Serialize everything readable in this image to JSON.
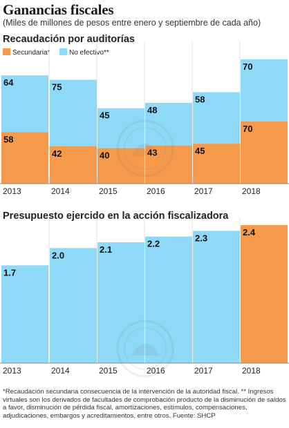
{
  "title": "Ganancias fiscales",
  "subtitle": "(Miles de millones de pesos entre enero y septiembre de cada año)",
  "colors": {
    "secundaria": "#F59A4A",
    "no_efectivo": "#8ED8F8",
    "grid": "#DDDDDD",
    "axis": "#888888"
  },
  "section1": {
    "title": "Recaudación por auditorías",
    "legend": [
      {
        "label": "Secundaria*",
        "color": "#F59A4A"
      },
      {
        "label": "No efectivo**",
        "color": "#8ED8F8"
      }
    ]
  },
  "section2": {
    "title": "Presupuesto ejercido en la acción fiscalizadora"
  },
  "chart_data": [
    {
      "type": "bar",
      "stacked": true,
      "title": "Recaudación por auditorías",
      "categories": [
        "2013",
        "2014",
        "2015",
        "2016",
        "2017",
        "2018"
      ],
      "series": [
        {
          "name": "Secundaria*",
          "values": [
            58,
            42,
            40,
            43,
            45,
            70
          ],
          "color": "#F59A4A"
        },
        {
          "name": "No efectivo**",
          "values": [
            64,
            75,
            45,
            48,
            58,
            70
          ],
          "color": "#8ED8F8"
        }
      ],
      "ylim": [
        0,
        140
      ],
      "grid": false
    },
    {
      "type": "bar",
      "title": "Presupuesto ejercido en la acción fiscalizadora",
      "categories": [
        "2013",
        "2014",
        "2015",
        "2016",
        "2017",
        "2018"
      ],
      "values": [
        1.7,
        2.0,
        2.1,
        2.2,
        2.3,
        2.4
      ],
      "value_labels": [
        "1.7",
        "2.0",
        "2.1",
        "2.2",
        "2.3",
        "2.4"
      ],
      "colors": [
        "#8ED8F8",
        "#8ED8F8",
        "#8ED8F8",
        "#8ED8F8",
        "#8ED8F8",
        "#F59A4A"
      ],
      "ylim": [
        0,
        2.4
      ],
      "grid": false
    }
  ],
  "footnote": "*Recaudación secundaria consecuencia de la intervención de la autoridad fiscal. ** Ingresos virtuales son los derivados de facultades de comprobación producto de la disminución de saldos a favor, disminución de pérdida fiscal, amortizaciones, estímulos, compensaciones, adjudicaciones, embargos y acreditamientos, entre otros. Fuente: SHCP"
}
